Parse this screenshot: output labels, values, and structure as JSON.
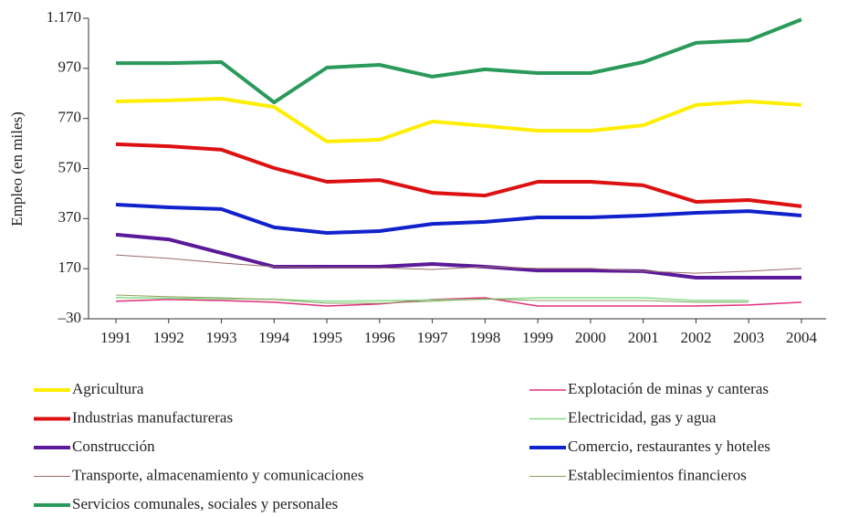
{
  "chart_data": {
    "type": "line",
    "y_label": "Empleo (en miles)",
    "categories": [
      "1991",
      "1992",
      "1993",
      "1994",
      "1995",
      "1996",
      "1997",
      "1998",
      "1999",
      "2000",
      "2001",
      "2002",
      "2003",
      "2004"
    ],
    "ylim": [
      -30,
      1170
    ],
    "yticks": [
      {
        "value": -30,
        "label": "–30"
      },
      170,
      370,
      570,
      770,
      970,
      {
        "value": 1170,
        "label": "1.170"
      }
    ],
    "series": [
      {
        "name": "Agricultura",
        "color": "#ffee00",
        "width": 4,
        "values": [
          838,
          842,
          849,
          816,
          678,
          685,
          758,
          740,
          721,
          721,
          743,
          824,
          838,
          824
        ]
      },
      {
        "name": "Explotación de minas y canteras",
        "color": "#e0307a",
        "width": 1.5,
        "values": [
          40,
          47,
          43,
          36,
          21,
          29,
          47,
          54,
          21,
          21,
          21,
          21,
          25,
          36
        ]
      },
      {
        "name": "Industrias manufactureras",
        "color": "#dd1111",
        "width": 4,
        "values": [
          667,
          659,
          645,
          572,
          517,
          524,
          473,
          462,
          517,
          517,
          503,
          437,
          444,
          419
        ]
      },
      {
        "name": "Electricidad, gas y agua",
        "color": "#88dd88",
        "width": 1.5,
        "values": [
          55,
          52,
          50,
          48,
          40,
          42,
          45,
          48,
          54,
          54,
          54,
          43,
          43,
          null
        ]
      },
      {
        "name": "Construcción",
        "color": "#5a1a9a",
        "width": 4,
        "values": [
          306,
          287,
          233,
          178,
          178,
          178,
          189,
          178,
          163,
          163,
          160,
          134,
          134,
          134
        ]
      },
      {
        "name": "Comercio, restaurantes y hoteles",
        "color": "#1122cc",
        "width": 4,
        "values": [
          426,
          415,
          408,
          335,
          313,
          320,
          349,
          357,
          375,
          375,
          382,
          393,
          400,
          382
        ]
      },
      {
        "name": "Transporte, almacenamiento y comunicaciones",
        "color": "#9a6a6a",
        "width": 1,
        "values": [
          225,
          211,
          193,
          178,
          174,
          174,
          167,
          178,
          171,
          171,
          160,
          152,
          160,
          171
        ]
      },
      {
        "name": "Establecimientos financieros",
        "color": "#88a060",
        "width": 1,
        "values": [
          65,
          58,
          54,
          47,
          32,
          32,
          40,
          50,
          43,
          43,
          43,
          36,
          36,
          null
        ]
      },
      {
        "name": "Servicios comunales, sociales y personales",
        "color": "#2a9a5a",
        "width": 4,
        "values": [
          991,
          991,
          995,
          834,
          973,
          984,
          937,
          966,
          951,
          951,
          995,
          1072,
          1082,
          1165
        ]
      }
    ]
  }
}
